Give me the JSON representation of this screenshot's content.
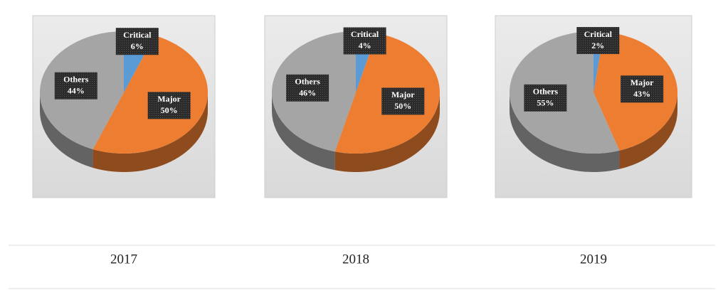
{
  "chart_data": [
    {
      "type": "pie",
      "title": "2017",
      "categories": [
        "Critical",
        "Major",
        "Others"
      ],
      "values": [
        6,
        50,
        44
      ],
      "value_labels": [
        "6%",
        "50%",
        "44%"
      ],
      "colors": [
        "#5b9bd5",
        "#ed7d31",
        "#a5a5a5"
      ]
    },
    {
      "type": "pie",
      "title": "2018",
      "categories": [
        "Critical",
        "Major",
        "Others"
      ],
      "values": [
        4,
        50,
        46
      ],
      "value_labels": [
        "4%",
        "50%",
        "46%"
      ],
      "colors": [
        "#5b9bd5",
        "#ed7d31",
        "#a5a5a5"
      ]
    },
    {
      "type": "pie",
      "title": "2019",
      "categories": [
        "Critical",
        "Major",
        "Others"
      ],
      "values": [
        2,
        43,
        55
      ],
      "value_labels": [
        "2%",
        "43%",
        "55%"
      ],
      "colors": [
        "#5b9bd5",
        "#ed7d31",
        "#a5a5a5"
      ]
    }
  ]
}
